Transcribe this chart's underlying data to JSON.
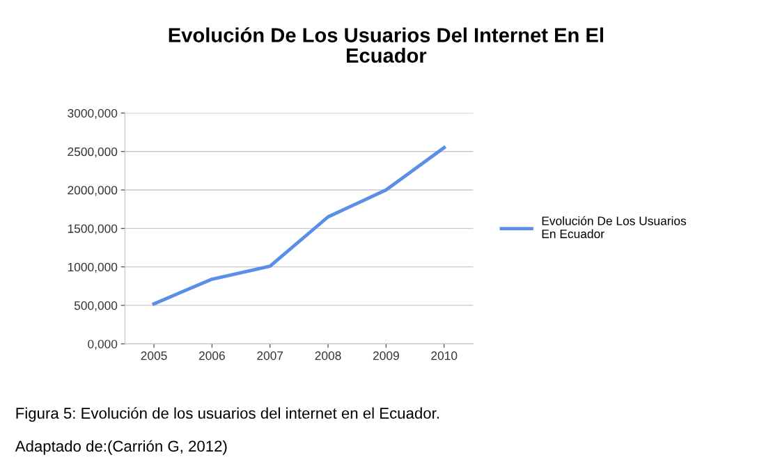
{
  "chart_data": {
    "type": "line",
    "title": "Evolución De Los Usuarios Del Internet En El\nEcuador",
    "categories": [
      "2005",
      "2006",
      "2007",
      "2008",
      "2009",
      "2010"
    ],
    "series": [
      {
        "name": "Evolución De Los Usuarios\nEn Ecuador",
        "color": "#5b8fe6",
        "values": [
          520000,
          840000,
          1010000,
          1650000,
          2000000,
          2550000
        ]
      }
    ],
    "ylim": [
      0,
      3000000
    ],
    "yticks": [
      {
        "value": 0,
        "label": "0,000"
      },
      {
        "value": 500000,
        "label": "500,000"
      },
      {
        "value": 1000000,
        "label": "1000,000"
      },
      {
        "value": 1500000,
        "label": "1500,000"
      },
      {
        "value": 2000000,
        "label": "2000,000"
      },
      {
        "value": 2500000,
        "label": "2500,000"
      },
      {
        "value": 3000000,
        "label": "3000,000"
      }
    ],
    "grid": "y",
    "legend": "right",
    "marker": "none",
    "line_style": "solid",
    "annotations": [
      "Figura 5: Evolución de los usuarios del internet en el Ecuador.",
      "Adaptado de:(Carrión G, 2012)"
    ]
  }
}
